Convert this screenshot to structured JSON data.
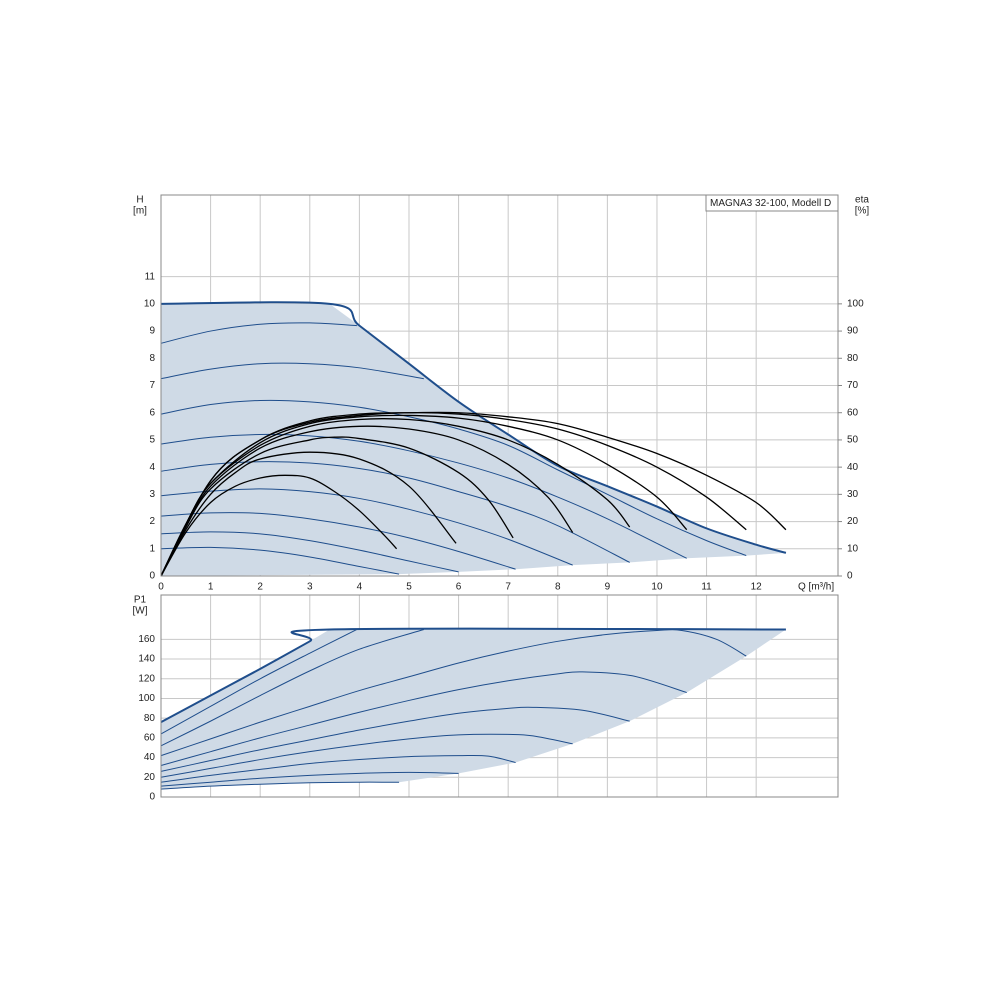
{
  "chart_data": [
    {
      "type": "line",
      "annotation": "MAGNA3 32-100, Modell D",
      "ylabel": "H",
      "ylabel_unit": "[m]",
      "y2label": "eta",
      "y2label_unit": "[%]",
      "xlabel": "Q [m³/h]",
      "xlim": [
        0,
        13.65
      ],
      "xticks": [
        0,
        1,
        2,
        3,
        4,
        5,
        6,
        7,
        8,
        9,
        10,
        11,
        12
      ],
      "ylim": [
        0,
        14
      ],
      "yticks": [
        0,
        1,
        2,
        3,
        4,
        5,
        6,
        7,
        8,
        9,
        10,
        11
      ],
      "y2lim": [
        0,
        140
      ],
      "y2ticks": [
        0,
        10,
        20,
        30,
        40,
        50,
        60,
        70,
        80,
        90,
        100
      ],
      "grid": true,
      "area": {
        "color": "#cfdae6",
        "x": [
          0,
          0,
          3.4,
          4,
          5,
          6,
          7,
          8,
          9,
          10,
          11,
          12,
          12.6,
          11.8,
          10.6,
          9.45,
          8.3,
          7.15,
          6,
          4.8
        ],
        "values": [
          0,
          10,
          10,
          9.2,
          7.8,
          6.4,
          5.2,
          4.05,
          3.3,
          2.55,
          1.75,
          1.15,
          0.85,
          0.75,
          0.65,
          0.5,
          0.4,
          0.25,
          0.15,
          0.07
        ]
      },
      "series": [
        {
          "color": "#1f4e8c",
          "width": 2,
          "x": [
            0,
            3.4,
            4,
            5,
            6,
            7,
            8,
            9,
            10,
            11,
            12,
            12.6
          ],
          "values": [
            10,
            10,
            9.2,
            7.8,
            6.4,
            5.2,
            4.05,
            3.3,
            2.55,
            1.75,
            1.15,
            0.85
          ]
        },
        {
          "color": "#1f4e8c",
          "width": 1,
          "x": [
            0,
            1,
            2,
            3,
            3.95
          ],
          "values": [
            8.55,
            9.0,
            9.25,
            9.3,
            9.2
          ]
        },
        {
          "color": "#1f4e8c",
          "width": 1,
          "x": [
            0,
            1,
            2,
            3,
            4,
            5.3
          ],
          "values": [
            7.25,
            7.6,
            7.8,
            7.8,
            7.65,
            7.25
          ]
        },
        {
          "color": "#1f4e8c",
          "width": 1,
          "x": [
            0,
            1,
            2,
            3,
            4,
            5,
            6,
            7,
            8,
            9,
            10,
            11,
            11.8
          ],
          "values": [
            5.95,
            6.3,
            6.45,
            6.4,
            6.2,
            5.85,
            5.4,
            4.8,
            3.9,
            3.0,
            2.1,
            1.3,
            0.75
          ]
        },
        {
          "color": "#1f4e8c",
          "width": 1,
          "x": [
            0,
            1,
            2,
            3,
            4,
            5,
            6,
            7,
            8,
            9,
            10.6
          ],
          "values": [
            4.85,
            5.1,
            5.2,
            5.15,
            4.95,
            4.6,
            4.15,
            3.6,
            2.9,
            2.1,
            0.65
          ]
        },
        {
          "color": "#1f4e8c",
          "width": 1,
          "x": [
            0,
            1,
            2,
            3,
            4,
            5,
            6,
            7,
            8,
            9.45
          ],
          "values": [
            3.85,
            4.1,
            4.2,
            4.15,
            3.95,
            3.6,
            3.1,
            2.55,
            1.85,
            0.5
          ]
        },
        {
          "color": "#1f4e8c",
          "width": 1,
          "x": [
            0,
            1,
            2,
            3,
            4,
            5,
            6,
            7,
            8.3
          ],
          "values": [
            2.95,
            3.12,
            3.2,
            3.1,
            2.85,
            2.45,
            1.95,
            1.35,
            0.4
          ]
        },
        {
          "color": "#1f4e8c",
          "width": 1,
          "x": [
            0,
            1,
            2,
            3,
            4,
            5,
            6,
            7.15
          ],
          "values": [
            2.2,
            2.32,
            2.3,
            2.1,
            1.8,
            1.4,
            0.9,
            0.25
          ]
        },
        {
          "color": "#1f4e8c",
          "width": 1,
          "x": [
            0,
            1,
            2,
            3,
            4,
            5,
            6
          ],
          "values": [
            1.55,
            1.62,
            1.55,
            1.3,
            0.95,
            0.55,
            0.15
          ]
        },
        {
          "color": "#1f4e8c",
          "width": 1,
          "x": [
            0,
            1,
            2,
            3,
            4,
            4.8
          ],
          "values": [
            1.0,
            1.05,
            0.95,
            0.7,
            0.35,
            0.07
          ]
        },
        {
          "color": "#000000",
          "width": 1.3,
          "axis": "y2",
          "x": [
            0,
            0.5,
            1,
            1.5,
            2,
            2.5,
            3,
            3.5,
            4,
            4.5,
            4.75
          ],
          "values": [
            0,
            16,
            27,
            33,
            36,
            37,
            36,
            31,
            24,
            15,
            10
          ]
        },
        {
          "color": "#000000",
          "width": 1.3,
          "axis": "y2",
          "x": [
            0,
            0.5,
            1,
            1.5,
            2,
            3,
            4,
            5,
            5.95
          ],
          "values": [
            0,
            17,
            30,
            38,
            43,
            45.5,
            43,
            33,
            12
          ]
        },
        {
          "color": "#000000",
          "width": 1.3,
          "axis": "y2",
          "x": [
            0,
            0.5,
            1,
            2,
            3,
            3.5,
            4,
            5,
            6,
            6.6,
            7.1
          ],
          "values": [
            0,
            18,
            32,
            45,
            50,
            51,
            50.5,
            47,
            38,
            28,
            14
          ]
        },
        {
          "color": "#000000",
          "width": 1.3,
          "axis": "y2",
          "x": [
            0,
            0.5,
            1,
            2,
            3,
            4,
            5,
            6,
            7,
            7.8,
            8.3
          ],
          "values": [
            0,
            18,
            33,
            47,
            53,
            55,
            54,
            50,
            41,
            29,
            16
          ]
        },
        {
          "color": "#000000",
          "width": 1.3,
          "axis": "y2",
          "x": [
            0,
            0.5,
            1,
            2,
            3,
            4,
            5,
            6,
            7,
            8,
            9,
            9.45
          ],
          "values": [
            0,
            19,
            34,
            48,
            55,
            57.5,
            57.5,
            55,
            50,
            41,
            28,
            18
          ]
        },
        {
          "color": "#000000",
          "width": 1.3,
          "axis": "y2",
          "x": [
            0,
            0.5,
            1,
            2,
            3,
            4,
            5,
            6,
            7,
            8,
            9,
            10,
            10.6
          ],
          "values": [
            0,
            19,
            34,
            49,
            56,
            58.5,
            59,
            58,
            55,
            50,
            41,
            29,
            17
          ]
        },
        {
          "color": "#000000",
          "width": 1.3,
          "axis": "y2",
          "x": [
            0,
            1,
            2,
            3,
            4,
            5,
            6,
            7,
            8,
            9,
            10,
            11,
            11.8
          ],
          "values": [
            0,
            35,
            50,
            56.5,
            59,
            60,
            59.5,
            57.5,
            54,
            48,
            40,
            29,
            17
          ]
        },
        {
          "color": "#000000",
          "width": 1.3,
          "axis": "y2",
          "x": [
            0,
            1,
            2,
            3,
            4,
            5,
            6,
            7,
            8,
            9,
            10,
            11,
            12,
            12.6
          ],
          "values": [
            0,
            35,
            50,
            57,
            59.5,
            60,
            60,
            58.5,
            56,
            51,
            45,
            37,
            27,
            17
          ]
        }
      ]
    },
    {
      "type": "line",
      "ylabel": "P1",
      "ylabel_unit": "[W]",
      "xlim": [
        0,
        13.65
      ],
      "ylim": [
        0,
        205
      ],
      "yticks": [
        0,
        20,
        40,
        60,
        80,
        100,
        120,
        140,
        160
      ],
      "grid": true,
      "area": {
        "color": "#cfdae6",
        "x": [
          0,
          0,
          1,
          2,
          3,
          3.4,
          12.6,
          11.8,
          10.6,
          9.45,
          8.3,
          7.15,
          6,
          4.8,
          4,
          3,
          2,
          1
        ],
        "values": [
          8,
          76,
          103,
          130,
          158,
          170,
          170,
          143,
          106,
          77,
          54,
          35,
          24,
          15,
          15,
          14.5,
          13,
          11
        ]
      },
      "series": [
        {
          "color": "#1f4e8c",
          "width": 2,
          "x": [
            0,
            1,
            2,
            3,
            3.4,
            12.6
          ],
          "values": [
            76,
            103,
            130,
            158,
            170,
            170
          ]
        },
        {
          "color": "#1f4e8c",
          "width": 1,
          "x": [
            0,
            1,
            2,
            3,
            3.95
          ],
          "values": [
            64,
            92,
            120,
            146,
            170
          ]
        },
        {
          "color": "#1f4e8c",
          "width": 1,
          "x": [
            0,
            1,
            2,
            3,
            4,
            5.3
          ],
          "values": [
            52,
            77,
            103,
            128,
            150,
            170
          ]
        },
        {
          "color": "#1f4e8c",
          "width": 1,
          "x": [
            0,
            1,
            2,
            3,
            4,
            5,
            6,
            7,
            8,
            9,
            10,
            10.5,
            11.2,
            11.8
          ],
          "values": [
            42,
            59,
            76,
            92,
            108,
            122,
            136,
            148,
            158,
            165,
            169,
            169,
            160,
            143
          ]
        },
        {
          "color": "#1f4e8c",
          "width": 1,
          "x": [
            0,
            1,
            2,
            3,
            4,
            5,
            6,
            7,
            8,
            8.5,
            9.5,
            10.6
          ],
          "values": [
            32,
            46,
            60,
            73,
            86,
            98,
            109,
            118,
            125,
            127,
            123,
            106
          ]
        },
        {
          "color": "#1f4e8c",
          "width": 1,
          "x": [
            0,
            1,
            2,
            3,
            4,
            5,
            6,
            7,
            7.5,
            8.5,
            9.45
          ],
          "values": [
            26,
            37,
            48,
            58,
            68,
            77,
            85,
            90,
            91,
            88,
            77
          ]
        },
        {
          "color": "#1f4e8c",
          "width": 1,
          "x": [
            0,
            1,
            2,
            3,
            4,
            5,
            6,
            7,
            7.5,
            8.3
          ],
          "values": [
            20,
            29,
            38,
            46,
            53,
            59,
            63,
            63.5,
            62,
            54
          ]
        },
        {
          "color": "#1f4e8c",
          "width": 1,
          "x": [
            0,
            1,
            2,
            3,
            4,
            5,
            6,
            6.6,
            7.15
          ],
          "values": [
            15,
            22,
            28,
            34,
            38,
            41,
            42,
            41.5,
            35
          ]
        },
        {
          "color": "#1f4e8c",
          "width": 1,
          "x": [
            0,
            1,
            2,
            3,
            4,
            5,
            6
          ],
          "values": [
            11,
            15,
            19,
            22,
            24,
            25,
            24
          ]
        },
        {
          "color": "#1f4e8c",
          "width": 1,
          "x": [
            0,
            1,
            2,
            3,
            4,
            4.8
          ],
          "values": [
            8,
            11,
            13,
            14.5,
            15,
            15
          ]
        }
      ]
    }
  ]
}
